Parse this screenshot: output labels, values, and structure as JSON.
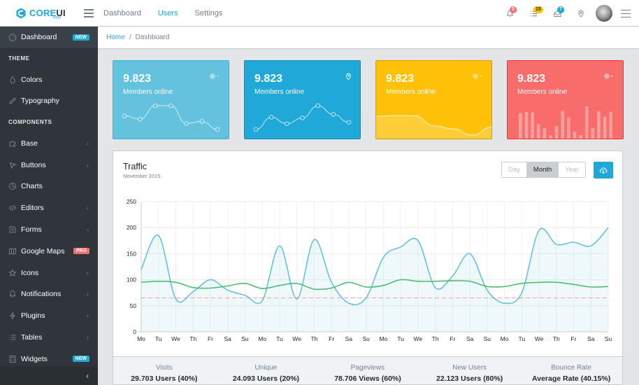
{
  "brand": {
    "name_part1": "CORE",
    "name_part2": "UI",
    "sub": "PRO"
  },
  "header": {
    "nav": [
      "Dashboard",
      "Users",
      "Settings"
    ],
    "active_nav": "Users",
    "badges": {
      "bell": "5",
      "list": "15",
      "mail": "7"
    }
  },
  "sidebar": {
    "items": [
      {
        "type": "item",
        "label": "Dashboard",
        "icon": "speedometer-icon",
        "badge": "NEW",
        "badge_color": "#20a8d8",
        "active": true
      },
      {
        "type": "title",
        "label": "THEME"
      },
      {
        "type": "item",
        "label": "Colors",
        "icon": "drop-icon"
      },
      {
        "type": "item",
        "label": "Typography",
        "icon": "pencil-icon"
      },
      {
        "type": "title",
        "label": "COMPONENTS"
      },
      {
        "type": "item",
        "label": "Base",
        "icon": "puzzle-icon",
        "caret": true
      },
      {
        "type": "item",
        "label": "Buttons",
        "icon": "cursor-icon",
        "caret": true
      },
      {
        "type": "item",
        "label": "Charts",
        "icon": "pie-chart-icon"
      },
      {
        "type": "item",
        "label": "Editors",
        "icon": "code-icon",
        "caret": true
      },
      {
        "type": "item",
        "label": "Forms",
        "icon": "note-icon",
        "caret": true
      },
      {
        "type": "item",
        "label": "Google Maps",
        "icon": "map-icon",
        "badge": "PRO",
        "badge_color": "#f86c6b"
      },
      {
        "type": "item",
        "label": "Icons",
        "icon": "star-icon",
        "caret": true
      },
      {
        "type": "item",
        "label": "Notifications",
        "icon": "bell-icon",
        "caret": true
      },
      {
        "type": "item",
        "label": "Plugins",
        "icon": "energy-icon",
        "caret": true
      },
      {
        "type": "item",
        "label": "Tables",
        "icon": "list-icon",
        "caret": true
      },
      {
        "type": "item",
        "label": "Widgets",
        "icon": "calculator-icon",
        "badge": "NEW",
        "badge_color": "#20a8d8"
      }
    ]
  },
  "breadcrumb": {
    "home": "Home",
    "current": "Dashboard"
  },
  "cards": [
    {
      "value": "9.823",
      "label": "Members online",
      "color": "#63c2de",
      "option_icon": "gear-icon"
    },
    {
      "value": "9.823",
      "label": "Members online",
      "color": "#20a8d8",
      "option_icon": "location-pin-icon"
    },
    {
      "value": "9.823",
      "label": "Members online",
      "color": "#ffc107",
      "option_icon": "gear-icon"
    },
    {
      "value": "9.823",
      "label": "Members online",
      "color": "#f86c6b",
      "option_icon": "gear-icon"
    }
  ],
  "traffic": {
    "title": "Traffic",
    "subtitle": "November 2015",
    "range_buttons": [
      "Day",
      "Month",
      "Year"
    ],
    "active_range": "Month",
    "stats": [
      {
        "title": "Visits",
        "value": "29.703 Users (40%)"
      },
      {
        "title": "Unique",
        "value": "24.093 Users (20%)"
      },
      {
        "title": "Pageviews",
        "value": "78.706 Views (60%)"
      },
      {
        "title": "New Users",
        "value": "22.123 Users (80%)"
      },
      {
        "title": "Bounce Rate",
        "value": "Average Rate (40.15%)"
      }
    ]
  },
  "chart_data": {
    "type": "line",
    "x": [
      "Mo",
      "Tu",
      "We",
      "Th",
      "Fr",
      "Sa",
      "Su",
      "Mo",
      "Tu",
      "We",
      "Th",
      "Fr",
      "Sa",
      "Su",
      "Mo",
      "Tu",
      "We",
      "Th",
      "Fr",
      "Sa",
      "Su",
      "Mo",
      "Tu",
      "We",
      "Th",
      "Fr",
      "Sa",
      "Su"
    ],
    "ylim": [
      0,
      250
    ],
    "yticks": [
      0,
      50,
      100,
      150,
      200,
      250
    ],
    "series": [
      {
        "color": "#63c2de",
        "fill": true,
        "values": [
          120,
          185,
          63,
          77,
          100,
          80,
          70,
          60,
          165,
          63,
          177,
          95,
          55,
          65,
          143,
          163,
          175,
          85,
          107,
          150,
          80,
          55,
          75,
          195,
          168,
          172,
          165,
          200
        ]
      },
      {
        "color": "#4dbd74",
        "fill": false,
        "values": [
          95,
          97,
          95,
          85,
          84,
          88,
          93,
          83,
          89,
          93,
          82,
          84,
          95,
          86,
          89,
          100,
          97,
          97,
          98,
          97,
          87,
          87,
          93,
          95,
          95,
          91,
          86,
          87
        ]
      },
      {
        "color": "#f86c6b",
        "dashed": true,
        "fill": false,
        "values": [
          65,
          65,
          65,
          65,
          65,
          65,
          65,
          65,
          65,
          65,
          65,
          65,
          65,
          65,
          65,
          65,
          65,
          65,
          65,
          65,
          65,
          65,
          65,
          65,
          65,
          65,
          65,
          65
        ]
      }
    ],
    "grid": true
  },
  "card_sparks": [
    {
      "type": "line",
      "values": [
        65,
        59,
        84,
        84,
        51,
        55,
        40
      ]
    },
    {
      "type": "line",
      "values": [
        1,
        18,
        9,
        17,
        34,
        22,
        11
      ]
    },
    {
      "type": "area",
      "values": [
        78,
        81,
        80,
        45,
        34,
        12,
        40
      ]
    },
    {
      "type": "bar",
      "values": [
        78,
        81,
        80,
        45,
        34,
        12,
        40,
        85,
        65,
        23,
        12,
        98,
        34,
        84,
        67,
        82
      ]
    }
  ]
}
